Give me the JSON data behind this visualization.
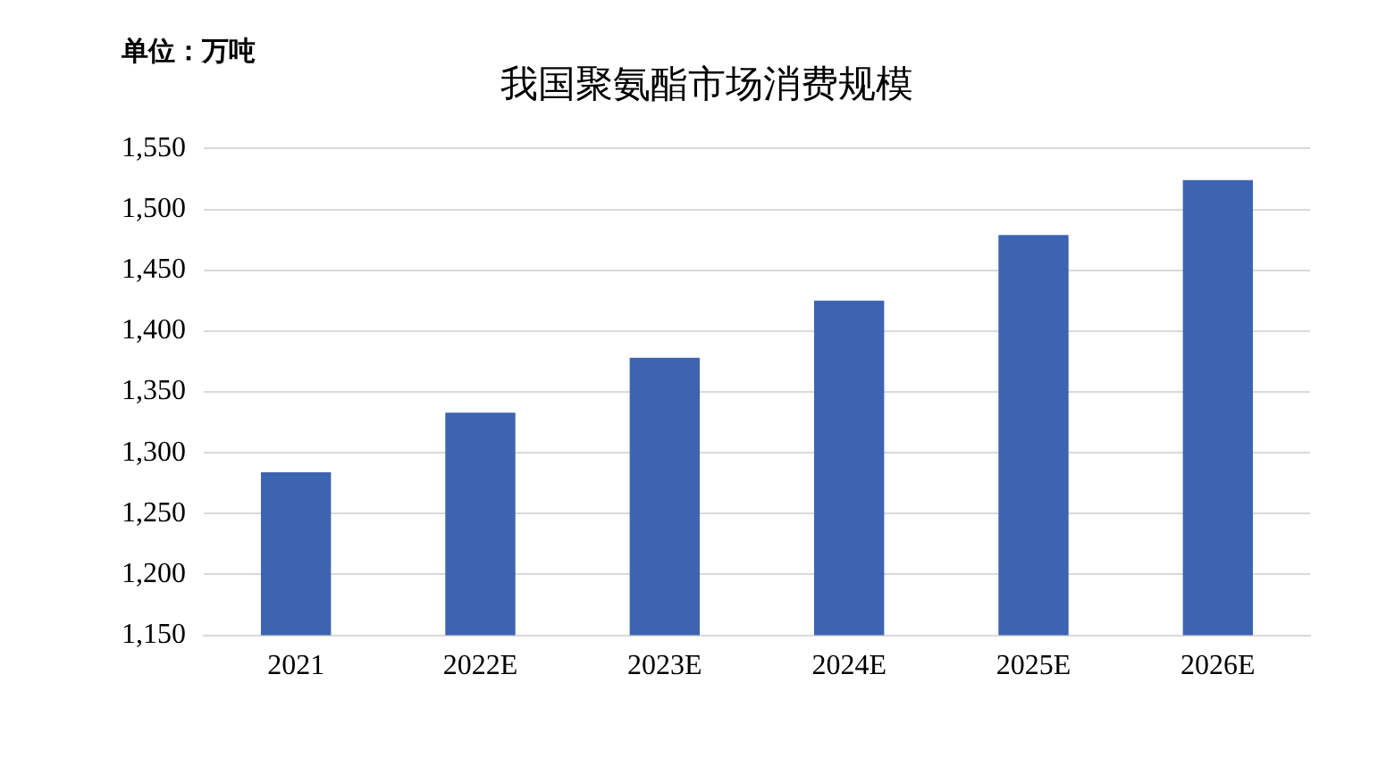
{
  "chart_data": {
    "type": "bar",
    "title": "我国聚氨酯市场消费规模",
    "annotations": [
      "单位：万吨"
    ],
    "categories": [
      "2021",
      "2022E",
      "2023E",
      "2024E",
      "2025E",
      "2026E"
    ],
    "values": [
      1284,
      1333,
      1378,
      1425,
      1479,
      1524
    ],
    "color": "#3d64b0",
    "ylim": [
      1150,
      1550
    ],
    "yticks": [
      {
        "value": 1150,
        "label": "1,150"
      },
      {
        "value": 1200,
        "label": "1,200"
      },
      {
        "value": 1250,
        "label": "1,250"
      },
      {
        "value": 1300,
        "label": "1,300"
      },
      {
        "value": 1350,
        "label": "1,350"
      },
      {
        "value": 1400,
        "label": "1,400"
      },
      {
        "value": 1450,
        "label": "1,450"
      },
      {
        "value": 1500,
        "label": "1,500"
      },
      {
        "value": 1550,
        "label": "1,550"
      }
    ],
    "grid": "y"
  }
}
